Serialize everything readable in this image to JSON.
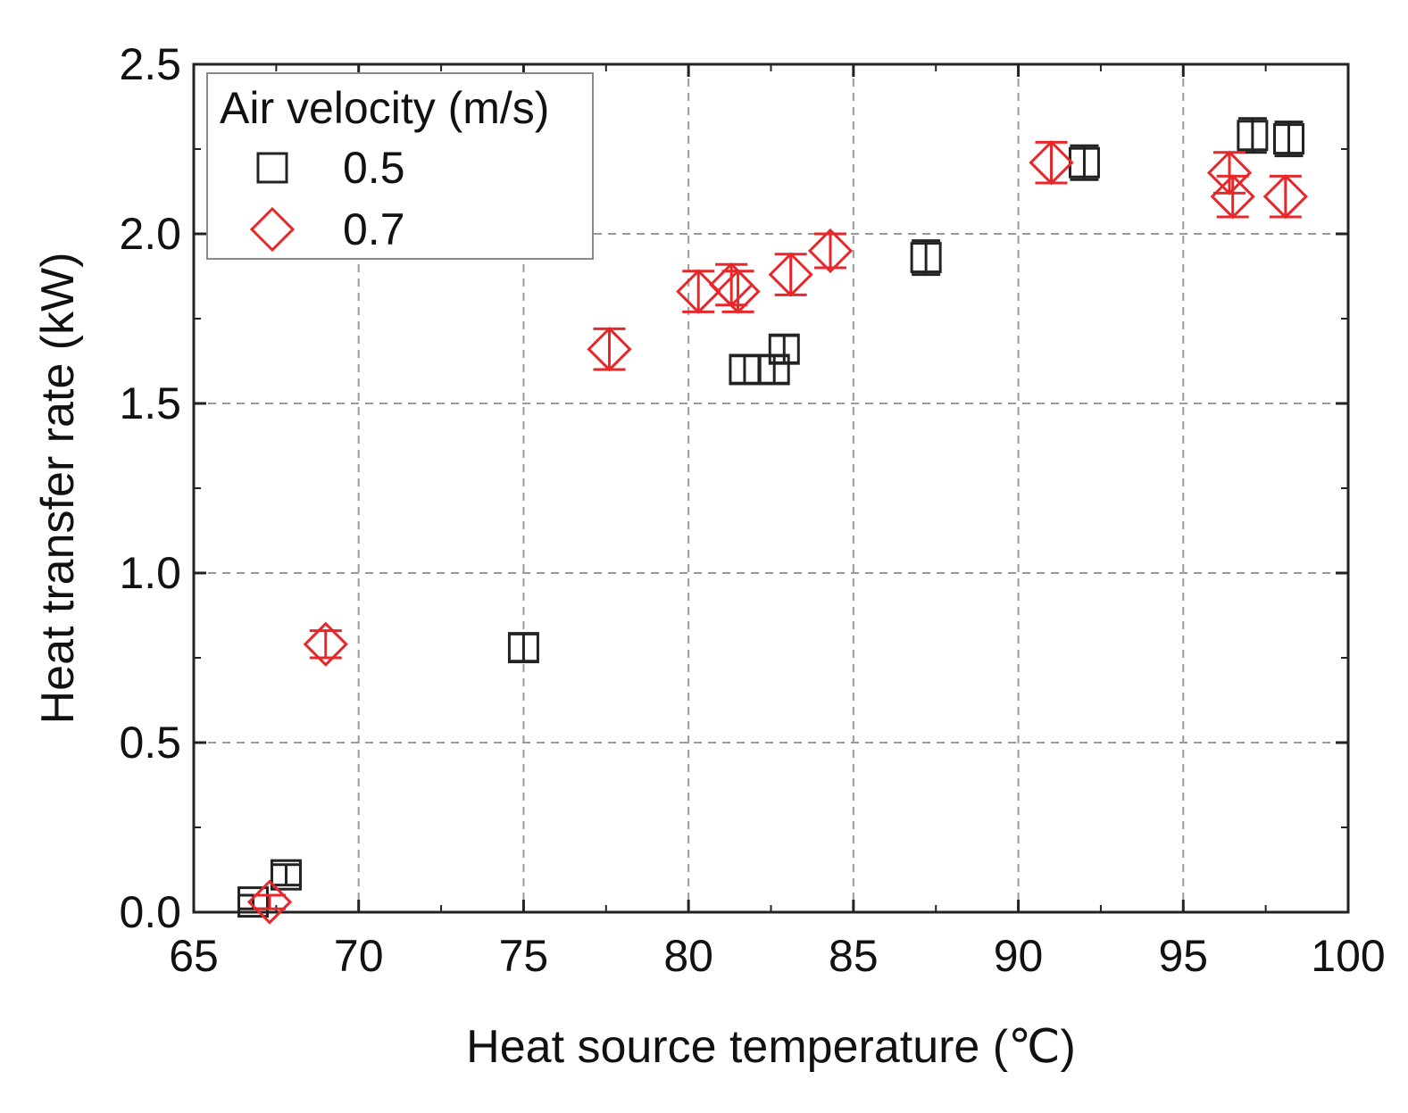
{
  "chart_data": {
    "type": "scatter",
    "title": "",
    "xlabel": "Heat source temperature (℃)",
    "ylabel": "Heat transfer rate (kW)",
    "xlim": [
      65,
      100
    ],
    "ylim": [
      0.0,
      2.5
    ],
    "xticks": [
      "65",
      "70",
      "75",
      "80",
      "85",
      "90",
      "95",
      "100"
    ],
    "yticks": [
      "0.0",
      "0.5",
      "1.0",
      "1.5",
      "2.0",
      "2.5"
    ],
    "grid": true,
    "legend": {
      "title": "Air velocity (m/s)",
      "position": "top-left",
      "entries": [
        "0.5",
        "0.7"
      ]
    },
    "series": [
      {
        "name": "0.5",
        "marker": "square",
        "color": "#222222",
        "points": [
          {
            "x": 66.8,
            "y": 0.03,
            "err": 0.02
          },
          {
            "x": 67.8,
            "y": 0.11,
            "err": 0.03
          },
          {
            "x": 75.0,
            "y": 0.78,
            "err": 0.04
          },
          {
            "x": 81.7,
            "y": 1.6,
            "err": 0.04
          },
          {
            "x": 82.6,
            "y": 1.6,
            "err": 0.04
          },
          {
            "x": 82.9,
            "y": 1.66,
            "err": 0.04
          },
          {
            "x": 87.2,
            "y": 1.93,
            "err": 0.05
          },
          {
            "x": 92.0,
            "y": 2.21,
            "err": 0.05
          },
          {
            "x": 97.1,
            "y": 2.29,
            "err": 0.05
          },
          {
            "x": 98.2,
            "y": 2.28,
            "err": 0.05
          }
        ]
      },
      {
        "name": "0.7",
        "marker": "diamond",
        "color": "#e8272b",
        "points": [
          {
            "x": 67.3,
            "y": 0.03,
            "err": 0.02
          },
          {
            "x": 69.0,
            "y": 0.79,
            "err": 0.04
          },
          {
            "x": 77.6,
            "y": 1.66,
            "err": 0.06
          },
          {
            "x": 80.3,
            "y": 1.83,
            "err": 0.06
          },
          {
            "x": 81.3,
            "y": 1.85,
            "err": 0.06
          },
          {
            "x": 81.5,
            "y": 1.83,
            "err": 0.06
          },
          {
            "x": 83.1,
            "y": 1.88,
            "err": 0.06
          },
          {
            "x": 84.3,
            "y": 1.95,
            "err": 0.05
          },
          {
            "x": 91.0,
            "y": 2.21,
            "err": 0.06
          },
          {
            "x": 96.4,
            "y": 2.18,
            "err": 0.06
          },
          {
            "x": 96.5,
            "y": 2.11,
            "err": 0.06
          },
          {
            "x": 98.1,
            "y": 2.11,
            "err": 0.06
          }
        ]
      }
    ]
  }
}
